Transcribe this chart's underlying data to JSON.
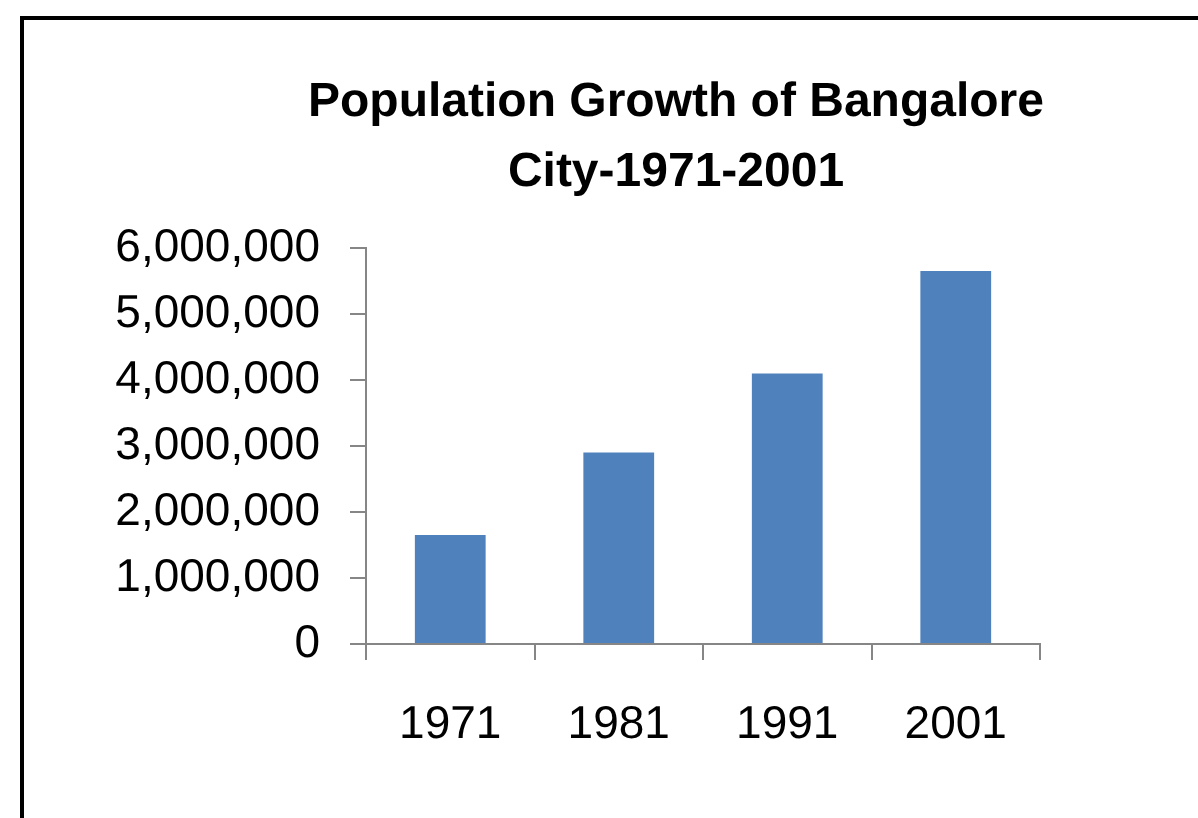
{
  "chart_data": {
    "type": "bar",
    "title": "Population Growth of Bangalore City-1971-2001",
    "categories": [
      "1971",
      "1981",
      "1991",
      "2001"
    ],
    "values": [
      1650000,
      2900000,
      4100000,
      5650000
    ],
    "color": "#4f81bd",
    "ylim": [
      0,
      6000000
    ],
    "yticks": [
      0,
      {
        "value": 1000000,
        "label": "1,000,000"
      },
      {
        "value": 2000000,
        "label": "2,000,000"
      },
      {
        "value": 3000000,
        "label": "3,000,000"
      },
      {
        "value": 4000000,
        "label": "4,000,000"
      },
      {
        "value": 5000000,
        "label": "5,000,000"
      },
      {
        "value": 6000000,
        "label": "6,000,000"
      }
    ]
  }
}
